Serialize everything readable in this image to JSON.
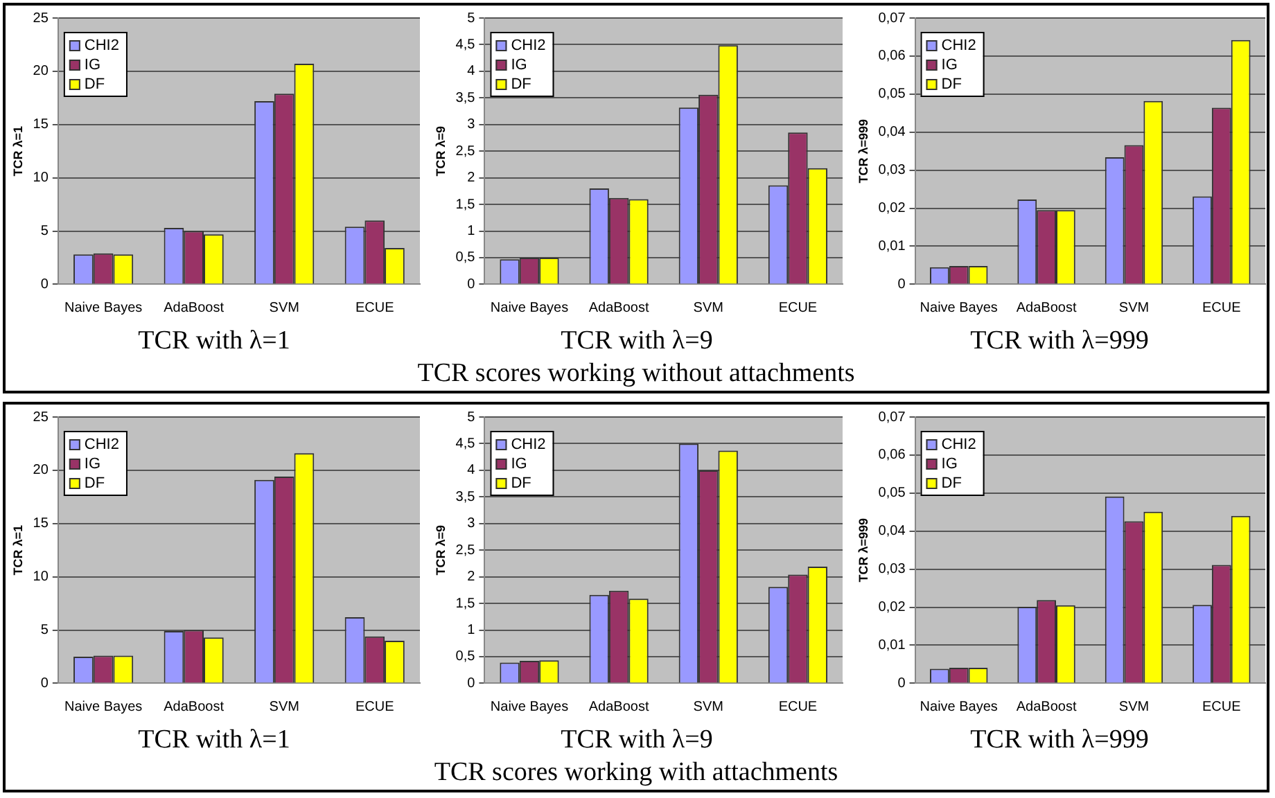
{
  "chart_data": [
    {
      "type": "bar",
      "title": "TCR with λ=1",
      "ylabel": "TCR λ=1",
      "categories": [
        "Naive Bayes",
        "AdaBoost",
        "SVM",
        "ECUE"
      ],
      "series": [
        {
          "name": "CHI2",
          "color": "#9999ff",
          "values": [
            2.8,
            5.3,
            17.2,
            5.4
          ]
        },
        {
          "name": "IG",
          "color": "#993366",
          "values": [
            2.9,
            5.0,
            17.9,
            6.0
          ]
        },
        {
          "name": "DF",
          "color": "#ffff00",
          "values": [
            2.8,
            4.7,
            20.7,
            3.4
          ]
        }
      ],
      "ylim": [
        0,
        25
      ],
      "yticks": [
        0,
        5,
        10,
        15,
        20,
        25
      ],
      "grid": "y",
      "legend": "top left"
    },
    {
      "type": "bar",
      "title": "TCR with λ=9",
      "ylabel": "TCR λ=9",
      "categories": [
        "Naive Bayes",
        "AdaBoost",
        "SVM",
        "ECUE"
      ],
      "series": [
        {
          "name": "CHI2",
          "color": "#9999ff",
          "values": [
            0.47,
            1.8,
            3.32,
            1.86
          ]
        },
        {
          "name": "IG",
          "color": "#993366",
          "values": [
            0.5,
            1.62,
            3.56,
            2.85
          ]
        },
        {
          "name": "DF",
          "color": "#ffff00",
          "values": [
            0.5,
            1.6,
            4.49,
            2.18
          ]
        }
      ],
      "ylim": [
        0,
        5
      ],
      "yticks": [
        0,
        {
          "value": 0.5,
          "label": "0,5"
        },
        1,
        {
          "value": 1.5,
          "label": "1,5"
        },
        2,
        {
          "value": 2.5,
          "label": "2,5"
        },
        3,
        {
          "value": 3.5,
          "label": "3,5"
        },
        4,
        {
          "value": 4.5,
          "label": "4,5"
        },
        5
      ],
      "grid": "y",
      "legend": "top left",
      "annotations": [
        "TCR scores working without attachments"
      ]
    },
    {
      "type": "bar",
      "title": "TCR with λ=999",
      "ylabel": "TCR λ=999",
      "categories": [
        "Naive Bayes",
        "AdaBoost",
        "SVM",
        "ECUE"
      ],
      "series": [
        {
          "name": "CHI2",
          "color": "#9999ff",
          "values": [
            0.0045,
            0.0223,
            0.0334,
            0.0231
          ]
        },
        {
          "name": "IG",
          "color": "#993366",
          "values": [
            0.0048,
            0.0195,
            0.0366,
            0.0464
          ]
        },
        {
          "name": "DF",
          "color": "#ffff00",
          "values": [
            0.0048,
            0.0195,
            0.0482,
            0.0642
          ]
        }
      ],
      "ylim": [
        0,
        0.07
      ],
      "yticks": [
        0,
        {
          "value": 0.01,
          "label": "0,01"
        },
        {
          "value": 0.02,
          "label": "0,02"
        },
        {
          "value": 0.03,
          "label": "0,03"
        },
        {
          "value": 0.04,
          "label": "0,04"
        },
        {
          "value": 0.05,
          "label": "0,05"
        },
        {
          "value": 0.06,
          "label": "0,06"
        },
        {
          "value": 0.07,
          "label": "0,07"
        }
      ],
      "grid": "y",
      "legend": "top left"
    },
    {
      "type": "bar",
      "title": "TCR with λ=1",
      "ylabel": "TCR λ=1",
      "categories": [
        "Naive Bayes",
        "AdaBoost",
        "SVM",
        "ECUE"
      ],
      "series": [
        {
          "name": "CHI2",
          "color": "#9999ff",
          "values": [
            2.5,
            4.9,
            19.1,
            6.2
          ]
        },
        {
          "name": "IG",
          "color": "#993366",
          "values": [
            2.6,
            5.0,
            19.4,
            4.4
          ]
        },
        {
          "name": "DF",
          "color": "#ffff00",
          "values": [
            2.6,
            4.3,
            21.6,
            4.0
          ]
        }
      ],
      "ylim": [
        0,
        25
      ],
      "yticks": [
        0,
        5,
        10,
        15,
        20,
        25
      ],
      "grid": "y",
      "legend": "top left"
    },
    {
      "type": "bar",
      "title": "TCR with λ=9",
      "ylabel": "TCR λ=9",
      "categories": [
        "Naive Bayes",
        "AdaBoost",
        "SVM",
        "ECUE"
      ],
      "series": [
        {
          "name": "CHI2",
          "color": "#9999ff",
          "values": [
            0.39,
            1.66,
            4.5,
            1.81
          ]
        },
        {
          "name": "IG",
          "color": "#993366",
          "values": [
            0.42,
            1.74,
            4.0,
            2.04
          ]
        },
        {
          "name": "DF",
          "color": "#ffff00",
          "values": [
            0.43,
            1.59,
            4.37,
            2.19
          ]
        }
      ],
      "ylim": [
        0,
        5
      ],
      "yticks": [
        0,
        {
          "value": 0.5,
          "label": "0,5"
        },
        1,
        {
          "value": 1.5,
          "label": "1,5"
        },
        2,
        {
          "value": 2.5,
          "label": "2,5"
        },
        3,
        {
          "value": 3.5,
          "label": "3,5"
        },
        4,
        {
          "value": 4.5,
          "label": "4,5"
        },
        5
      ],
      "grid": "y",
      "legend": "top left",
      "annotations": [
        "TCR scores working with attachments"
      ]
    },
    {
      "type": "bar",
      "title": "TCR with λ=999",
      "ylabel": "TCR λ=999",
      "categories": [
        "Naive Bayes",
        "AdaBoost",
        "SVM",
        "ECUE"
      ],
      "series": [
        {
          "name": "CHI2",
          "color": "#9999ff",
          "values": [
            0.0038,
            0.0201,
            0.0491,
            0.0206
          ]
        },
        {
          "name": "IG",
          "color": "#993366",
          "values": [
            0.0041,
            0.0219,
            0.0426,
            0.0311
          ]
        },
        {
          "name": "DF",
          "color": "#ffff00",
          "values": [
            0.0041,
            0.0205,
            0.0451,
            0.044
          ]
        }
      ],
      "ylim": [
        0,
        0.07
      ],
      "yticks": [
        0,
        {
          "value": 0.01,
          "label": "0,01"
        },
        {
          "value": 0.02,
          "label": "0,02"
        },
        {
          "value": 0.03,
          "label": "0,03"
        },
        {
          "value": 0.04,
          "label": "0,04"
        },
        {
          "value": 0.05,
          "label": "0,05"
        },
        {
          "value": 0.06,
          "label": "0,06"
        },
        {
          "value": 0.07,
          "label": "0,07"
        }
      ],
      "grid": "y",
      "legend": "top left"
    }
  ]
}
